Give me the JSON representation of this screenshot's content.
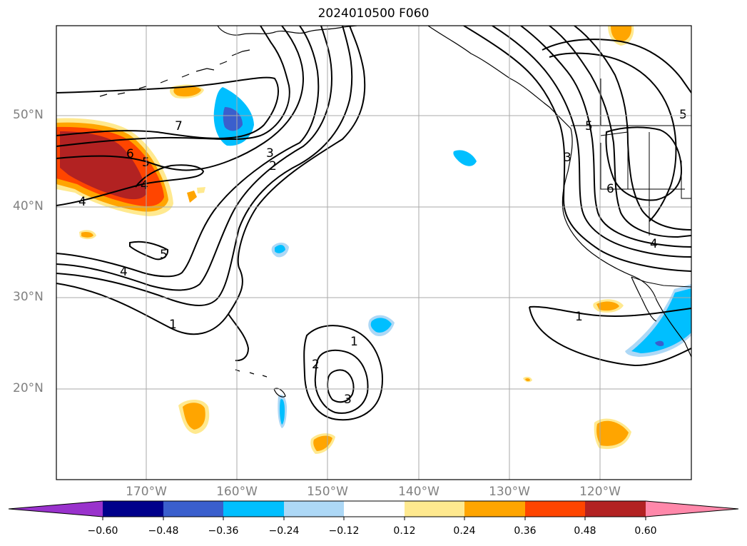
{
  "title": "2024010500 F060",
  "axes": {
    "lat_labels": [
      "50°N",
      "40°N",
      "30°N",
      "20°N"
    ],
    "lon_labels": [
      "170°W",
      "160°W",
      "150°W",
      "140°W",
      "130°W",
      "120°W"
    ]
  },
  "colorbar": {
    "ticks": [
      "−0.60",
      "−0.48",
      "−0.36",
      "−0.24",
      "−0.12",
      "0.12",
      "0.24",
      "0.36",
      "0.48",
      "0.60"
    ],
    "colors": [
      "#9932cc",
      "#00008b",
      "#3a5fcd",
      "#00bfff",
      "#add8f6",
      "#ffffff",
      "#ffe98f",
      "#ffa500",
      "#ff4500",
      "#b22222",
      "#ff88aa"
    ]
  },
  "contour_labels": [
    "7",
    "6",
    "5",
    "4",
    "4",
    "5",
    "4",
    "3",
    "2",
    "1",
    "1",
    "2",
    "3",
    "1",
    "5",
    "5",
    "6",
    "4",
    "3"
  ]
}
